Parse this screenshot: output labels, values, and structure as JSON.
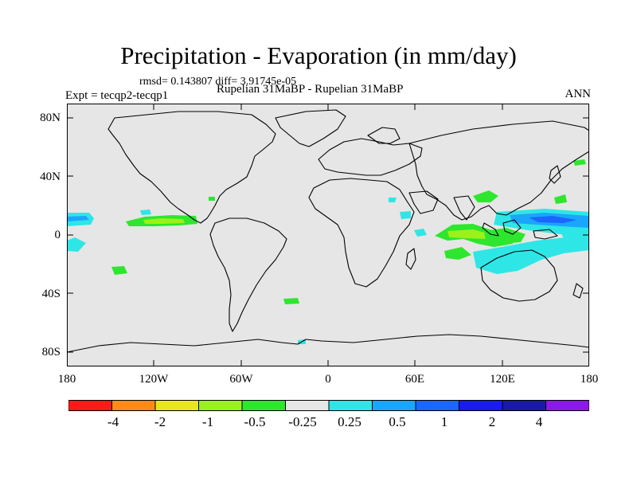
{
  "title": "Precipitation - Evaporation (in mm/day)",
  "stats": "rmsd= 0.143807 diff= 3.91745e-05",
  "experiment": "Expt = tecqp2-tecqp1",
  "subtitle": "Rupelian  31MaBP - Rupelian  31MaBP",
  "season": "ANN",
  "y_ticks": [
    {
      "label": "80N",
      "lat": 80
    },
    {
      "label": "40N",
      "lat": 40
    },
    {
      "label": "0",
      "lat": 0
    },
    {
      "label": "40S",
      "lat": -40
    },
    {
      "label": "80S",
      "lat": -80
    }
  ],
  "x_ticks": [
    {
      "label": "180",
      "lon": -180
    },
    {
      "label": "120W",
      "lon": -120
    },
    {
      "label": "60W",
      "lon": -60
    },
    {
      "label": "0",
      "lon": 0
    },
    {
      "label": "60E",
      "lon": 60
    },
    {
      "label": "120E",
      "lon": 120
    },
    {
      "label": "180",
      "lon": 180
    }
  ],
  "colorbar": {
    "colors": [
      "#ff1a1a",
      "#ff8a1a",
      "#e6e61a",
      "#9af21a",
      "#2ee62e",
      "#e6e6e6",
      "#2ee6e6",
      "#1aa6ff",
      "#1a66ff",
      "#1a1af2",
      "#1a1aa6",
      "#8a1ae6"
    ],
    "labels": [
      "-4",
      "-2",
      "-1",
      "-0.5",
      "-0.25",
      "0.25",
      "0.5",
      "1",
      "2",
      "4"
    ]
  },
  "map": {
    "background": "#e6e6e6",
    "lon_range": [
      -180,
      180
    ],
    "lat_range": [
      -90,
      90
    ]
  }
}
